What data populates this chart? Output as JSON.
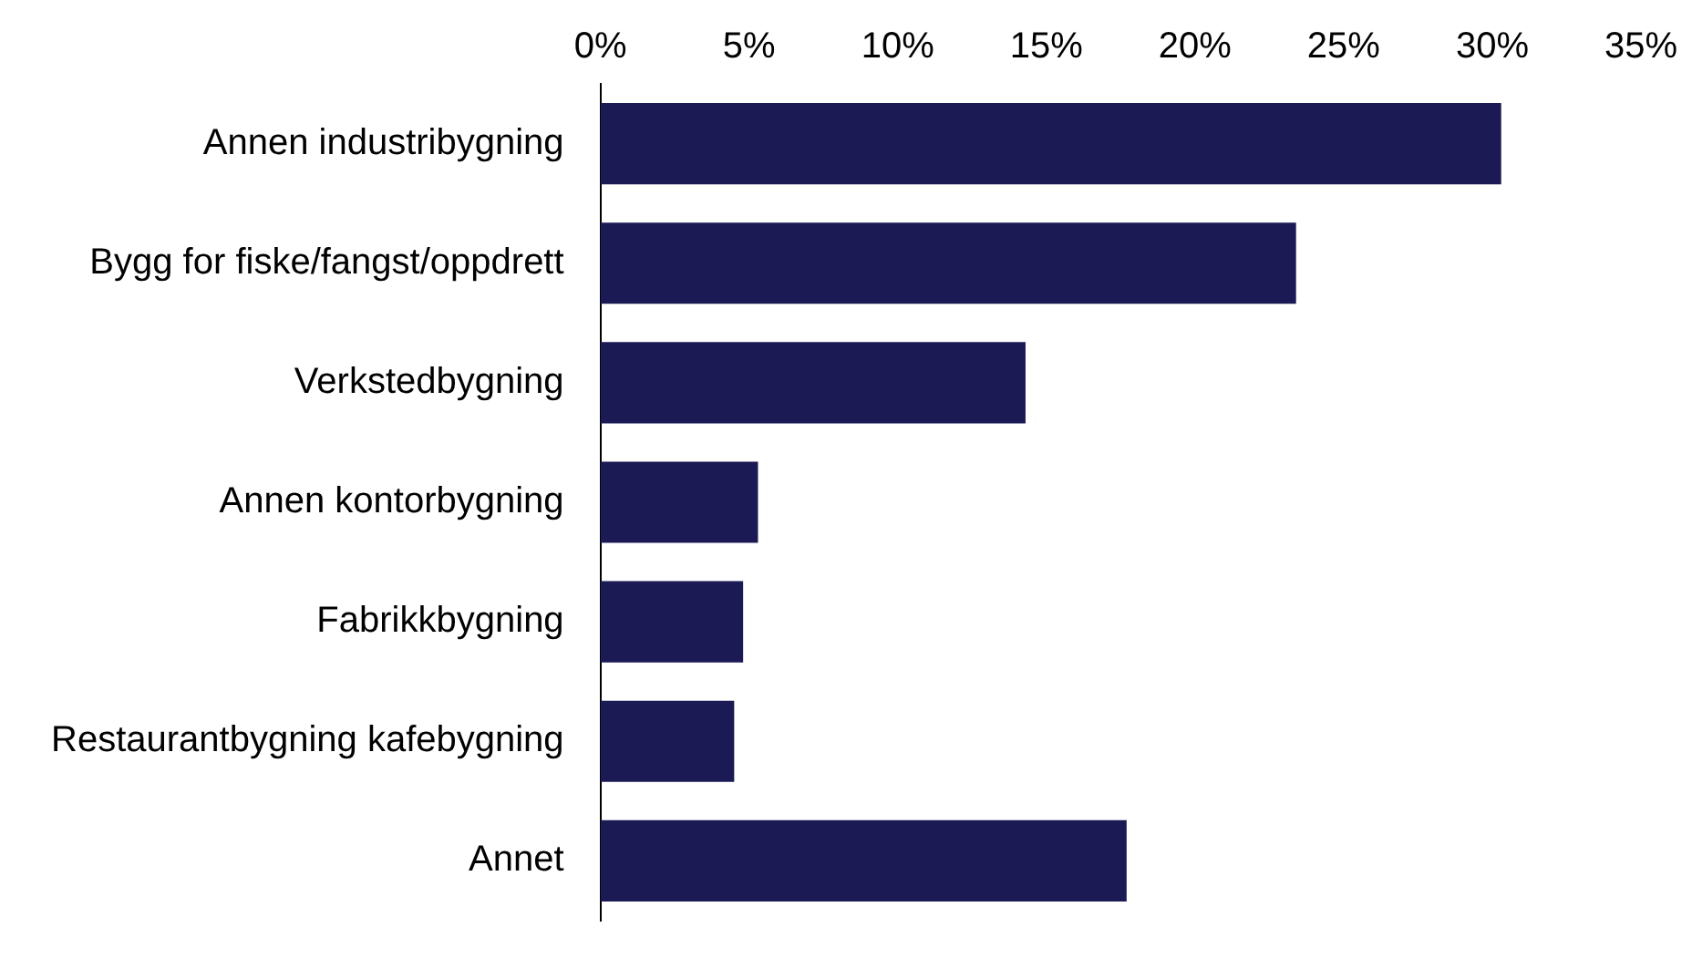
{
  "chart_data": {
    "type": "bar",
    "orientation": "horizontal",
    "categories": [
      "Annen industribygning",
      "Bygg for fiske/fangst/oppdrett",
      "Verkstedbygning",
      "Annen kontorbygning",
      "Fabrikkbygning",
      "Restaurantbygning kafebygning",
      "Annet"
    ],
    "values": [
      30.3,
      23.4,
      14.3,
      5.3,
      4.8,
      4.5,
      17.7
    ],
    "color": "#1c1a55",
    "xlim": [
      0,
      35
    ],
    "xticks": [
      {
        "value": 0,
        "label": "0%"
      },
      {
        "value": 5,
        "label": "5%"
      },
      {
        "value": 10,
        "label": "10%"
      },
      {
        "value": 15,
        "label": "15%"
      },
      {
        "value": 20,
        "label": "20%"
      },
      {
        "value": 25,
        "label": "25%"
      },
      {
        "value": 30,
        "label": "30%"
      },
      {
        "value": 35,
        "label": "35%"
      }
    ],
    "grid": false,
    "legend": false
  }
}
